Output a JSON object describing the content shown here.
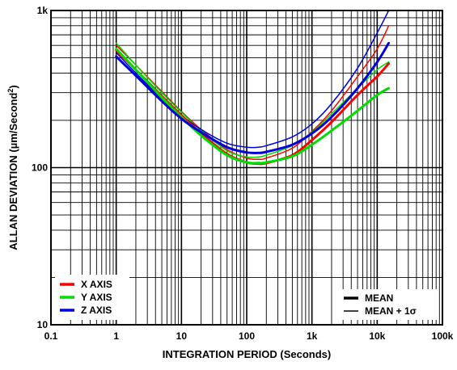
{
  "chart_data": {
    "type": "line",
    "title": "",
    "xlabel": "INTEGRATION PERIOD (Seconds)",
    "ylabel": "ALLAN DEVIATION (µm/Second",
    "ylabel_sup": "2",
    "ylabel_close": ")",
    "x_scale": "log",
    "y_scale": "log",
    "xlim": [
      0.1,
      100000
    ],
    "ylim": [
      10,
      1000
    ],
    "grid": true,
    "x_ticks": [
      {
        "value": 0.1,
        "label": "0.1"
      },
      {
        "value": 1,
        "label": "1"
      },
      {
        "value": 10,
        "label": "10"
      },
      {
        "value": 100,
        "label": "100"
      },
      {
        "value": 1000,
        "label": "1k"
      },
      {
        "value": 10000,
        "label": "10k"
      },
      {
        "value": 100000,
        "label": "100k"
      }
    ],
    "y_ticks": [
      {
        "value": 10,
        "label": "10"
      },
      {
        "value": 100,
        "label": "100"
      },
      {
        "value": 1000,
        "label": "1k"
      }
    ],
    "legend_color": {
      "placement": "bottom-left",
      "entries": [
        {
          "label": "X AXIS",
          "color": "#ff0000"
        },
        {
          "label": "Y AXIS",
          "color": "#00dd00"
        },
        {
          "label": "Z AXIS",
          "color": "#0000dd"
        }
      ]
    },
    "legend_style": {
      "placement": "bottom-right",
      "entries": [
        {
          "label": "MEAN",
          "weight": "thick"
        },
        {
          "label": "MEAN + 1σ",
          "weight": "thin"
        }
      ]
    },
    "series": [
      {
        "axis": "X",
        "stat": "mean",
        "color": "#ff0000",
        "width": 3,
        "x": [
          1,
          2,
          5,
          10,
          20,
          50,
          100,
          150,
          200,
          500,
          1000,
          2000,
          5000,
          10000,
          15000
        ],
        "y": [
          560,
          420,
          285,
          215,
          165,
          122,
          108,
          106,
          107,
          120,
          150,
          195,
          290,
          380,
          460
        ]
      },
      {
        "axis": "X",
        "stat": "mean+1sigma",
        "color": "#ff0000",
        "width": 1.5,
        "x": [
          1,
          2,
          5,
          10,
          20,
          50,
          100,
          150,
          200,
          500,
          1000,
          2000,
          5000,
          10000,
          15000
        ],
        "y": [
          600,
          450,
          305,
          228,
          175,
          130,
          115,
          113,
          115,
          133,
          170,
          230,
          380,
          570,
          800
        ]
      },
      {
        "axis": "Y",
        "stat": "mean",
        "color": "#00dd00",
        "width": 3,
        "x": [
          1,
          2,
          5,
          10,
          20,
          50,
          100,
          150,
          200,
          500,
          1000,
          2000,
          5000,
          10000,
          15000
        ],
        "y": [
          570,
          420,
          280,
          210,
          160,
          120,
          108,
          107,
          108,
          118,
          140,
          172,
          230,
          290,
          320
        ]
      },
      {
        "axis": "Y",
        "stat": "mean+1sigma",
        "color": "#00dd00",
        "width": 1.5,
        "x": [
          1,
          2,
          5,
          10,
          20,
          50,
          100,
          150,
          200,
          500,
          1000,
          2000,
          5000,
          10000,
          15000
        ],
        "y": [
          620,
          450,
          300,
          225,
          172,
          128,
          117,
          117,
          120,
          138,
          168,
          220,
          320,
          420,
          470
        ]
      },
      {
        "axis": "Z",
        "stat": "mean",
        "color": "#0000dd",
        "width": 3,
        "x": [
          1,
          2,
          5,
          10,
          20,
          50,
          100,
          150,
          200,
          500,
          1000,
          2000,
          5000,
          10000,
          15000
        ],
        "y": [
          510,
          385,
          265,
          205,
          168,
          135,
          125,
          124,
          126,
          140,
          165,
          210,
          320,
          470,
          620
        ]
      },
      {
        "axis": "Z",
        "stat": "mean+1sigma",
        "color": "#0000dd",
        "width": 1.5,
        "x": [
          1,
          2,
          5,
          10,
          20,
          50,
          100,
          150,
          200,
          500,
          1000,
          2000,
          5000,
          10000,
          15000
        ],
        "y": [
          540,
          400,
          275,
          215,
          175,
          143,
          135,
          135,
          138,
          157,
          190,
          255,
          430,
          720,
          1000
        ]
      }
    ]
  }
}
